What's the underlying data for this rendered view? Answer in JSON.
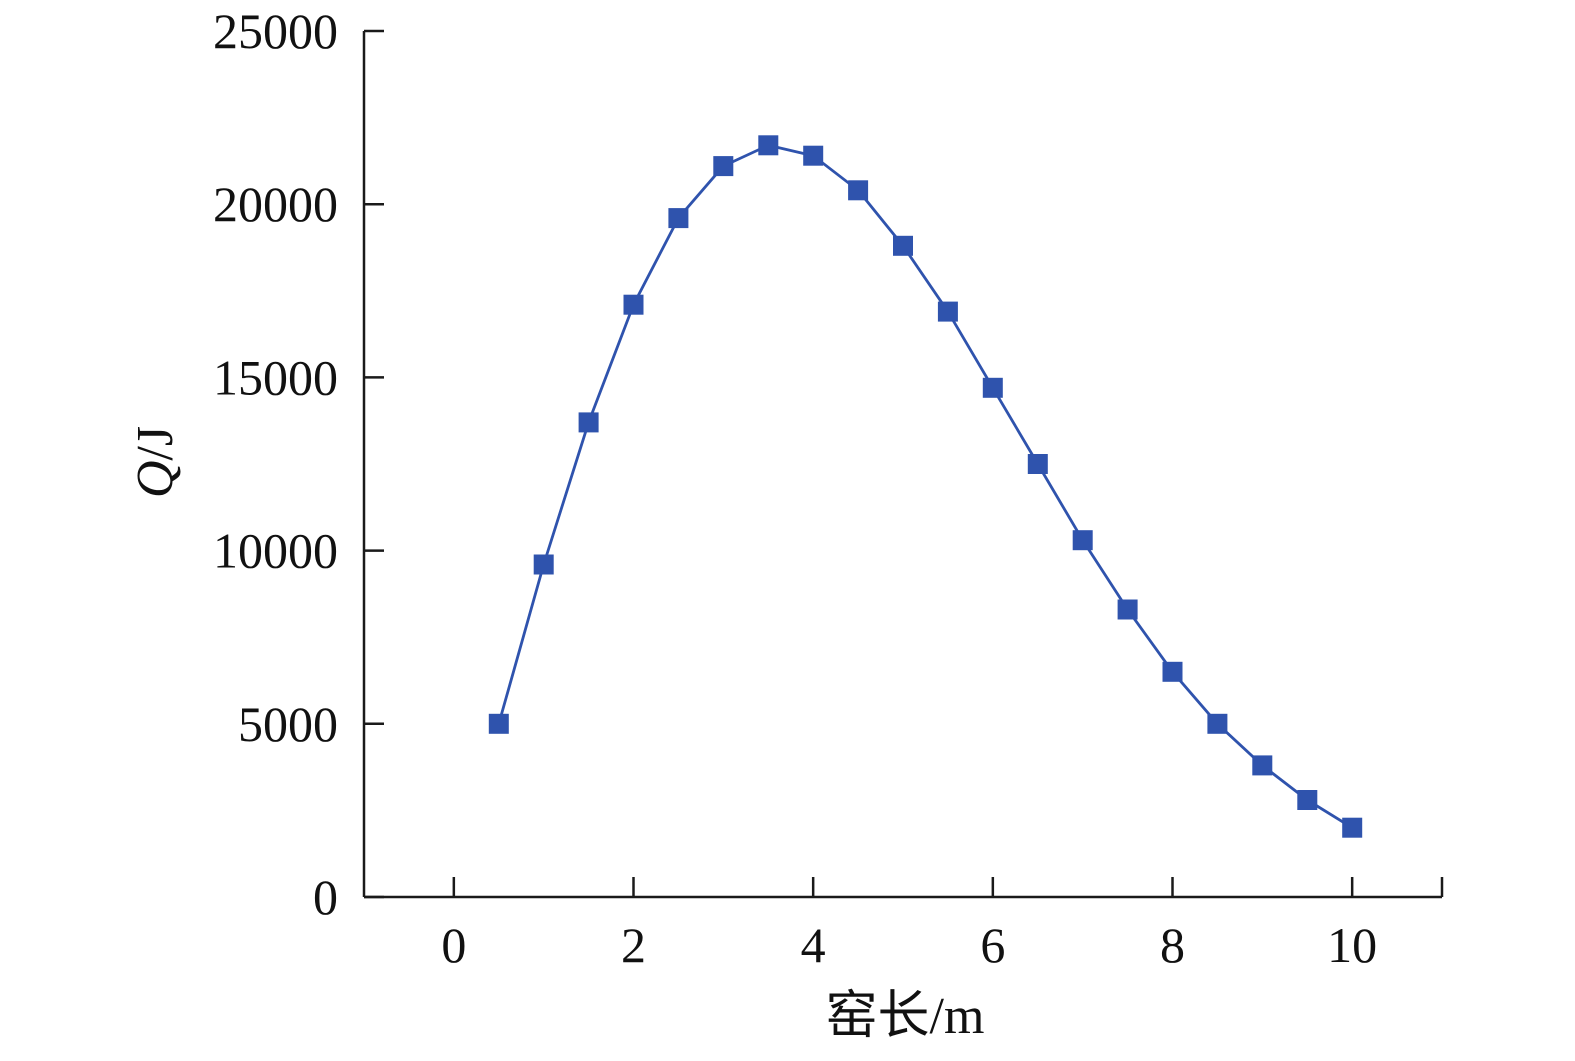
{
  "chart_data": {
    "type": "line",
    "title": "",
    "xlabel": "窑长/m",
    "ylabel": "Q/J",
    "ylabel_parts": {
      "italic": "Q",
      "rest": "/J"
    },
    "xlim": [
      -1,
      11
    ],
    "ylim": [
      0,
      25000
    ],
    "xticks": [
      0,
      2,
      4,
      6,
      8,
      10
    ],
    "yticks": [
      0,
      5000,
      10000,
      15000,
      20000,
      25000
    ],
    "xtick_labels": [
      "0",
      "2",
      "4",
      "6",
      "8",
      "10"
    ],
    "ytick_labels": [
      "0",
      "5000",
      "10000",
      "15000",
      "20000",
      "25000"
    ],
    "grid": false,
    "series": [
      {
        "color": "#2F53AD",
        "marker": "square",
        "x": [
          0.5,
          1,
          1.5,
          2,
          2.5,
          3,
          3.5,
          4,
          4.5,
          5,
          5.5,
          6,
          6.5,
          7,
          7.5,
          8,
          8.5,
          9,
          9.5,
          10
        ],
        "y": [
          5000,
          9600,
          13700,
          17100,
          19600,
          21100,
          21700,
          21400,
          20400,
          18800,
          16900,
          14700,
          12500,
          10300,
          8300,
          6500,
          5000,
          3800,
          2800,
          2000
        ]
      }
    ]
  }
}
